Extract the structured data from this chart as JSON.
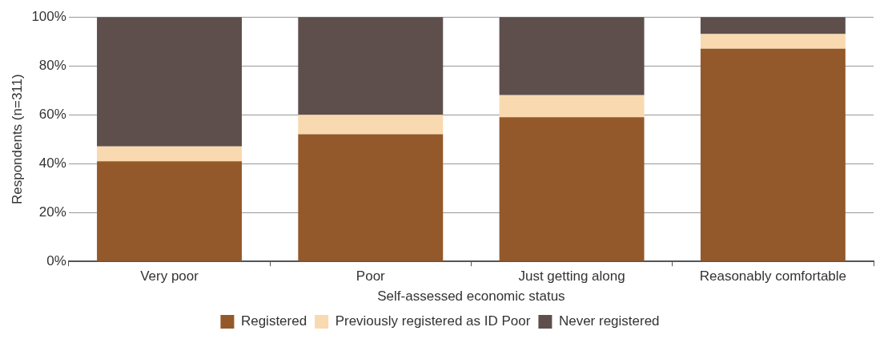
{
  "chart_data": {
    "type": "bar",
    "stacked": true,
    "xlabel": "Self-assessed economic status",
    "ylabel": "Respondents (n=311)",
    "categories": [
      "Very poor",
      "Poor",
      "Just getting along",
      "Reasonably comfortable"
    ],
    "series": [
      {
        "name": "Registered",
        "color": "#94592a",
        "values": [
          41,
          52,
          59,
          87
        ]
      },
      {
        "name": "Previously registered as ID Poor",
        "color": "#f9d9b0",
        "values": [
          6,
          8,
          9,
          6
        ]
      },
      {
        "name": "Never registered",
        "color": "#5e4f4c",
        "values": [
          53,
          40,
          32,
          7
        ]
      }
    ],
    "ylim": [
      0,
      100
    ],
    "yticks": [
      {
        "value": 0,
        "label": "0%"
      },
      {
        "value": 20,
        "label": "20%"
      },
      {
        "value": 40,
        "label": "40%"
      },
      {
        "value": 60,
        "label": "60%"
      },
      {
        "value": 80,
        "label": "80%"
      },
      {
        "value": 100,
        "label": "100%"
      }
    ],
    "grid": "y",
    "legend": "bottom"
  }
}
